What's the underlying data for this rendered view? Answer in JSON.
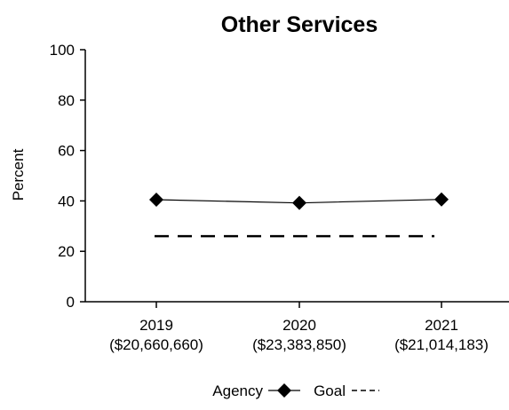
{
  "chart_data": {
    "type": "line",
    "title": "Other Services",
    "xlabel": "",
    "ylabel": "Percent",
    "ylim": [
      0,
      100
    ],
    "yticks": [
      0,
      20,
      40,
      60,
      80,
      100
    ],
    "categories": [
      "2019",
      "2020",
      "2021"
    ],
    "category_sublabels": [
      "($20,660,660)",
      "($23,383,850)",
      "($21,014,183)"
    ],
    "series": [
      {
        "name": "Agency",
        "values": [
          40.5,
          39.2,
          40.6
        ],
        "color": "#000000",
        "marker": "diamond",
        "line_style": "solid"
      },
      {
        "name": "Goal",
        "values": [
          26,
          26,
          26
        ],
        "color": "#000000",
        "marker": "none",
        "line_style": "dashed"
      }
    ],
    "grid": false,
    "legend": {
      "placement": "bottom-center",
      "items": [
        {
          "label": "Agency",
          "symbol": "line-diamond"
        },
        {
          "label": "Goal",
          "symbol": "dashed"
        }
      ]
    }
  }
}
